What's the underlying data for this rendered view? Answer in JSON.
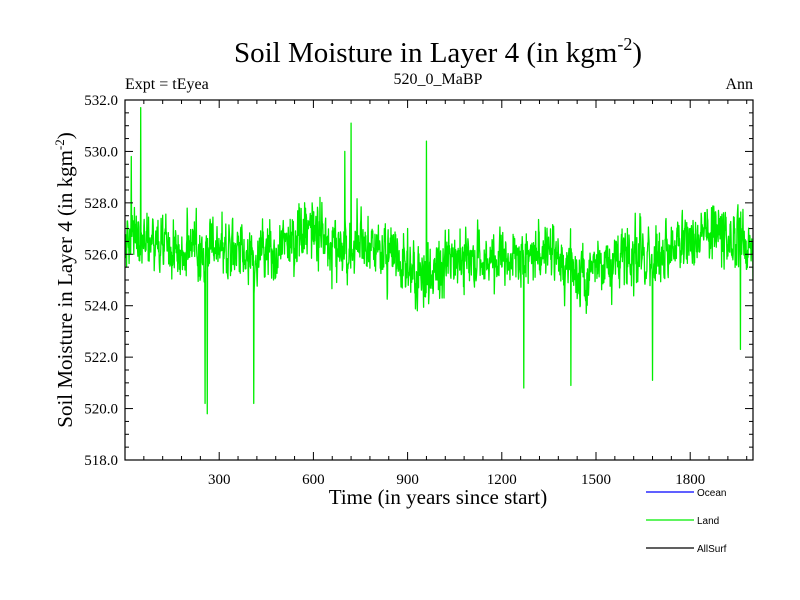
{
  "chart_data": {
    "type": "line",
    "title": "Soil Moisture in Layer 4 (in kgm",
    "title_superscript": "-2",
    "title_close": ")",
    "subtitle_left": "Expt = tEyea",
    "subtitle_center": "520_0_MaBP",
    "subtitle_right": "Ann",
    "xlabel": "Time (in years since start)",
    "ylabel": "Soil Moisture in Layer 4 (in kgm",
    "ylabel_superscript": "-2",
    "ylabel_close": ")",
    "xlim": [
      0,
      2000
    ],
    "ylim": [
      518.0,
      532.0
    ],
    "x_ticks": [
      300,
      600,
      900,
      1200,
      1500,
      1800
    ],
    "y_ticks": [
      "518.0",
      "520.0",
      "522.0",
      "524.0",
      "526.0",
      "528.0",
      "530.0",
      "532.0"
    ],
    "series": [
      {
        "name": "Ocean",
        "color": "#0000ff",
        "values": []
      },
      {
        "name": "Land",
        "color": "#00ee00",
        "mean": 526.0,
        "n_points": 2000,
        "sampled_x": [
          0,
          20,
          50,
          100,
          200,
          255,
          262,
          300,
          410,
          500,
          600,
          700,
          720,
          800,
          900,
          960,
          1000,
          1100,
          1200,
          1270,
          1300,
          1400,
          1420,
          1500,
          1600,
          1680,
          1700,
          1800,
          1900,
          1960,
          2000
        ],
        "sampled_y": [
          526.0,
          529.8,
          531.7,
          526.5,
          525.8,
          520.2,
          519.8,
          526.0,
          520.2,
          526.0,
          526.5,
          530.0,
          531.1,
          526.0,
          527.0,
          530.4,
          526.5,
          526.0,
          525.5,
          520.8,
          525.0,
          524.0,
          520.9,
          525.5,
          527.0,
          521.1,
          526.5,
          527.0,
          525.5,
          522.3,
          525.0
        ]
      },
      {
        "name": "AllSurf",
        "color": "#000000",
        "values": []
      }
    ]
  }
}
